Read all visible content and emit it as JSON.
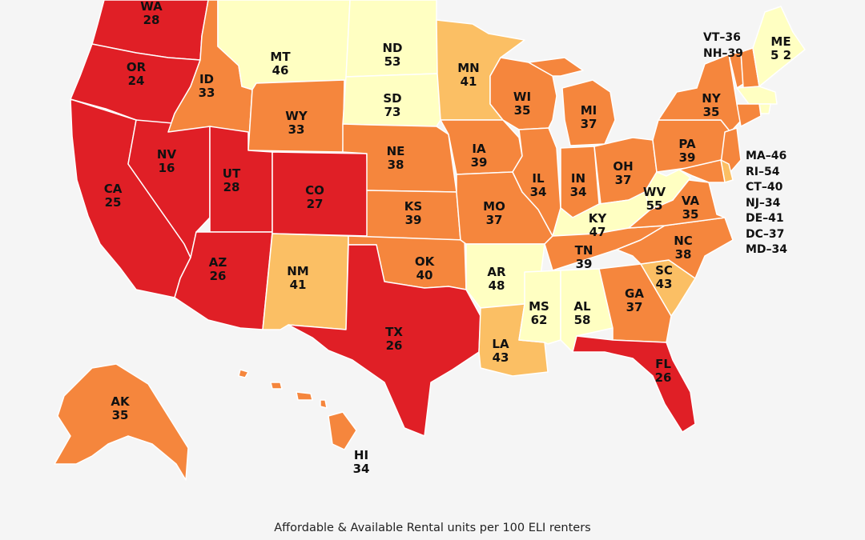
{
  "caption": "Affordable & Available Rental units per 100 ELI renters",
  "colors": {
    "background": "#f5f5f5",
    "lowest": "#e01f26",
    "low": "#f5863d",
    "mid": "#fbbf64",
    "high": "#ffffc2",
    "state_border": "#ffffff"
  },
  "states": [
    {
      "code": "WA",
      "value": 28,
      "color": "lowest"
    },
    {
      "code": "OR",
      "value": 24,
      "color": "lowest"
    },
    {
      "code": "CA",
      "value": 25,
      "color": "lowest"
    },
    {
      "code": "NV",
      "value": 16,
      "color": "lowest"
    },
    {
      "code": "ID",
      "value": 33,
      "color": "low"
    },
    {
      "code": "MT",
      "value": 46,
      "color": "high"
    },
    {
      "code": "WY",
      "value": 33,
      "color": "low"
    },
    {
      "code": "UT",
      "value": 28,
      "color": "lowest"
    },
    {
      "code": "AZ",
      "value": 26,
      "color": "lowest"
    },
    {
      "code": "CO",
      "value": 27,
      "color": "lowest"
    },
    {
      "code": "NM",
      "value": 41,
      "color": "mid"
    },
    {
      "code": "ND",
      "value": 53,
      "color": "high"
    },
    {
      "code": "SD",
      "value": 73,
      "color": "high"
    },
    {
      "code": "NE",
      "value": 38,
      "color": "low"
    },
    {
      "code": "KS",
      "value": 39,
      "color": "low"
    },
    {
      "code": "OK",
      "value": 40,
      "color": "low"
    },
    {
      "code": "TX",
      "value": 26,
      "color": "lowest"
    },
    {
      "code": "MN",
      "value": 41,
      "color": "mid"
    },
    {
      "code": "IA",
      "value": 39,
      "color": "low"
    },
    {
      "code": "MO",
      "value": 37,
      "color": "low"
    },
    {
      "code": "AR",
      "value": 48,
      "color": "high"
    },
    {
      "code": "LA",
      "value": 43,
      "color": "mid"
    },
    {
      "code": "WI",
      "value": 35,
      "color": "low"
    },
    {
      "code": "IL",
      "value": 34,
      "color": "low"
    },
    {
      "code": "MI",
      "value": 37,
      "color": "low"
    },
    {
      "code": "IN",
      "value": 34,
      "color": "low"
    },
    {
      "code": "OH",
      "value": 37,
      "color": "low"
    },
    {
      "code": "KY",
      "value": 47,
      "color": "high"
    },
    {
      "code": "TN",
      "value": 39,
      "color": "low"
    },
    {
      "code": "MS",
      "value": 62,
      "color": "high"
    },
    {
      "code": "AL",
      "value": 58,
      "color": "high"
    },
    {
      "code": "GA",
      "value": 37,
      "color": "low"
    },
    {
      "code": "FL",
      "value": 26,
      "color": "lowest"
    },
    {
      "code": "SC",
      "value": 43,
      "color": "mid"
    },
    {
      "code": "NC",
      "value": 38,
      "color": "low"
    },
    {
      "code": "VA",
      "value": 35,
      "color": "low"
    },
    {
      "code": "WV",
      "value": 55,
      "color": "high"
    },
    {
      "code": "PA",
      "value": 39,
      "color": "low"
    },
    {
      "code": "NY",
      "value": 35,
      "color": "low"
    },
    {
      "code": "ME",
      "value": "5 2",
      "color": "high"
    },
    {
      "code": "AK",
      "value": 35,
      "color": "low"
    },
    {
      "code": "HI",
      "value": 34,
      "color": "low"
    }
  ],
  "small_states_northeast": [
    "VT–36",
    "NH–39"
  ],
  "small_states_midatlantic": [
    "MA–46",
    "RI–54",
    "CT–40",
    "NJ–34",
    "DE–41",
    "DC–37",
    "MD–34"
  ],
  "small_state_colors": {
    "VT": "low",
    "NH": "low",
    "MA": "high",
    "RI": "high",
    "CT": "low",
    "NJ": "low",
    "DE": "mid",
    "MD": "low"
  }
}
